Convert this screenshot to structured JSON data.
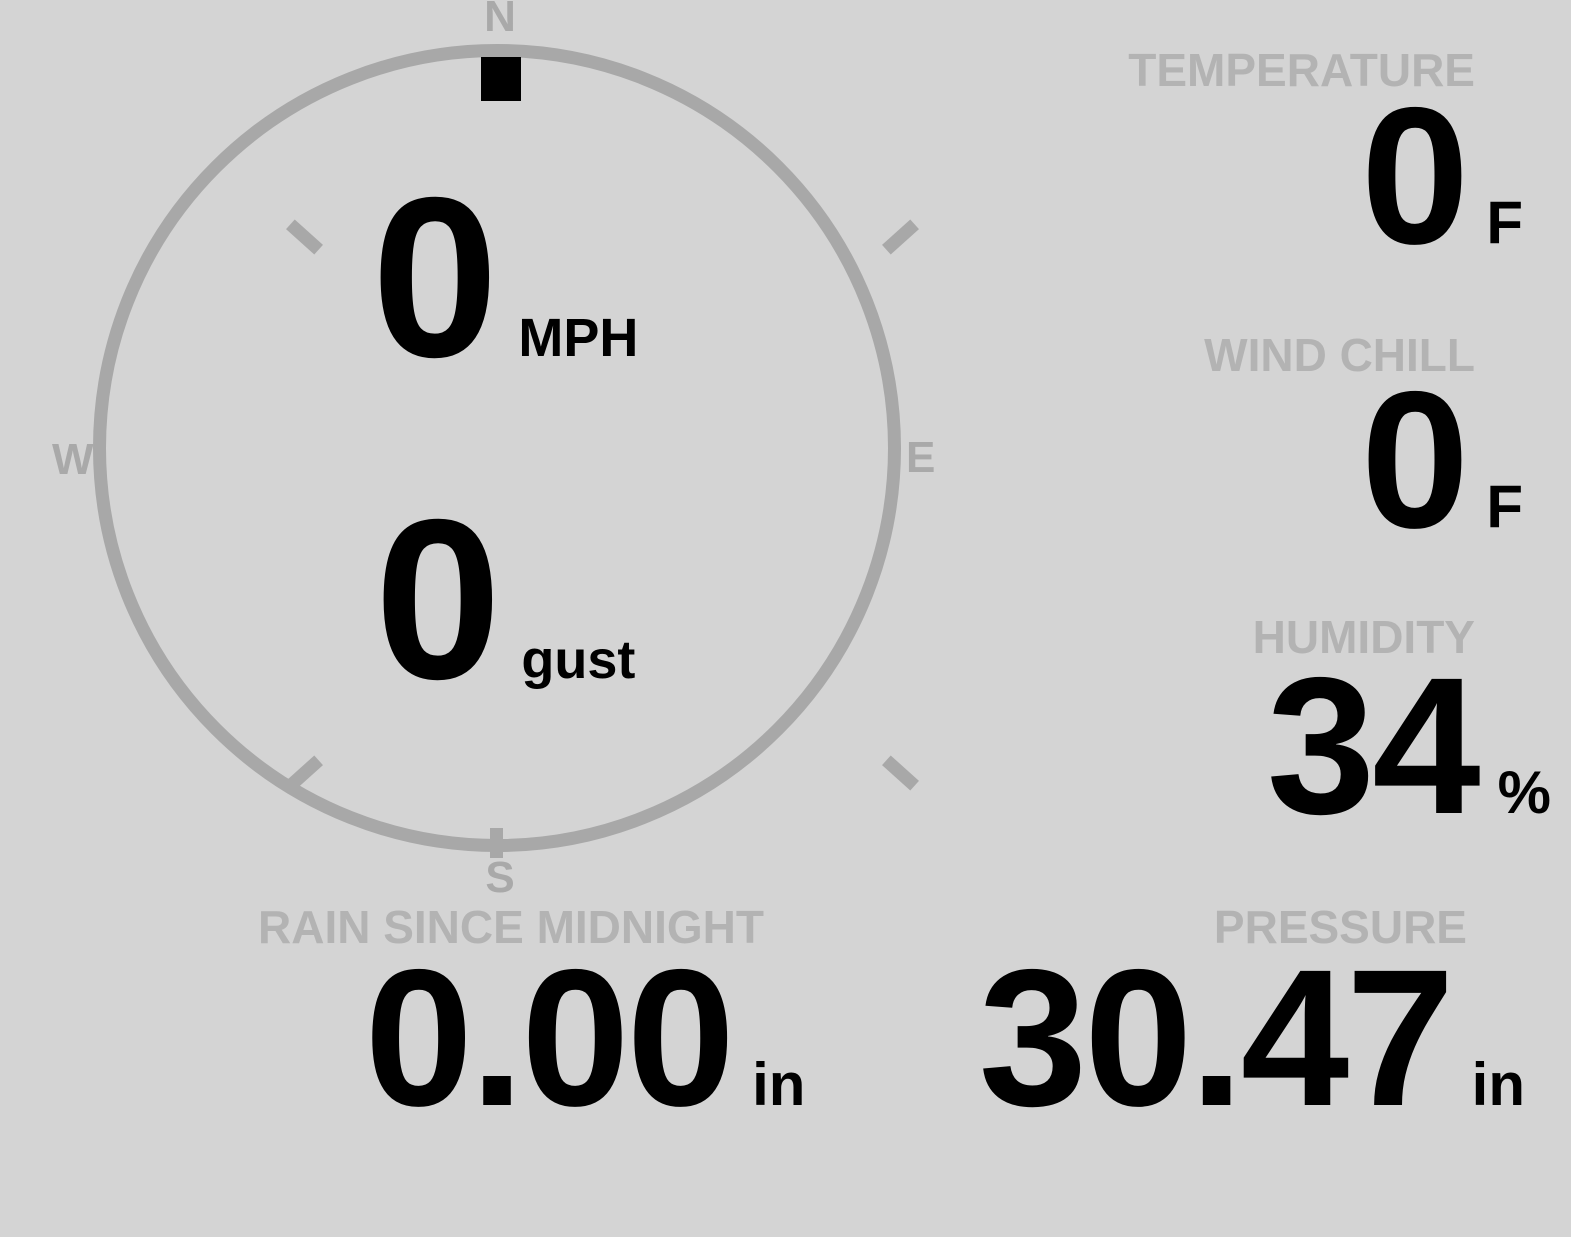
{
  "colors": {
    "background": "#d4d4d4",
    "circle": "#a8a8a8",
    "cardinal_gray": "#a9a9a9",
    "label_gray": "#b3b3b3",
    "value_black": "#000000"
  },
  "compass": {
    "cardinals": {
      "n": "N",
      "e": "E",
      "s": "S",
      "w": "W"
    },
    "direction_marker": "N",
    "speed": {
      "value": "0",
      "unit": "MPH"
    },
    "gust": {
      "value": "0",
      "unit": "gust"
    }
  },
  "metrics": {
    "temperature": {
      "label": "TEMPERATURE",
      "value": "0",
      "unit": "F"
    },
    "wind_chill": {
      "label": "WIND CHILL",
      "value": "0",
      "unit": "F"
    },
    "humidity": {
      "label": "HUMIDITY",
      "value": "34",
      "unit": "%"
    },
    "rain": {
      "label": "RAIN SINCE MIDNIGHT",
      "value": "0.00",
      "unit": "in"
    },
    "pressure": {
      "label": "PRESSURE",
      "value": "30.47",
      "unit": "in"
    }
  }
}
